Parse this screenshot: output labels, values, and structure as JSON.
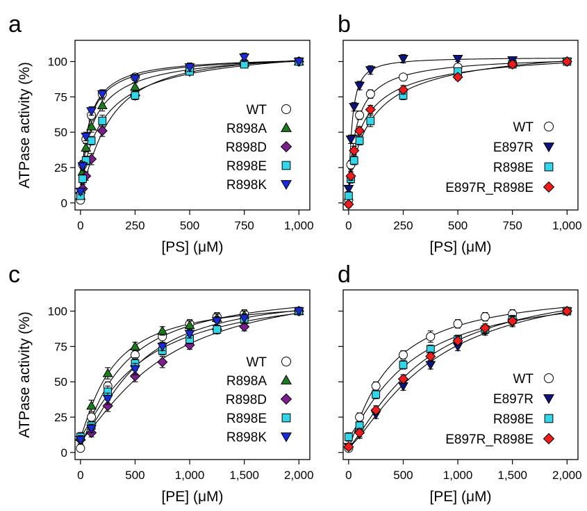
{
  "figure": {
    "colors": {
      "WT": "#ffffff",
      "R898A": "#1e7a1e",
      "R898D": "#7b1f8c",
      "R898E": "#33d6e8",
      "R898K": "#1a2bd6",
      "E897R": "#0d137a",
      "E897R_R898E": "#ee1c1c"
    },
    "markers": {
      "WT": "circle",
      "R898A": "triangle-up",
      "R898D": "diamond",
      "R898E": "square",
      "R898K": "triangle-down",
      "E897R": "triangle-down",
      "E897R_R898E": "diamond"
    }
  },
  "chart_data": [
    {
      "type": "scatter",
      "panel": "a",
      "xlabel": "[PS] (μM)",
      "ylabel": "ATPase activity (%)",
      "xlim": [
        -25,
        1050
      ],
      "ylim": [
        -5,
        115
      ],
      "xticks": [
        0,
        250,
        500,
        750,
        1000
      ],
      "xtick_labels": [
        "0",
        "250",
        "500",
        "750",
        "1,000"
      ],
      "yticks": [
        0,
        25,
        50,
        75,
        100
      ],
      "ytick_labels": [
        "0",
        "25",
        "50",
        "75",
        "100"
      ],
      "legend_position": "center-right",
      "fit_lines": true,
      "series": [
        {
          "name": "WT",
          "x": [
            0,
            10,
            25,
            50,
            100,
            250,
            500,
            750,
            1000
          ],
          "y": [
            2,
            27,
            45,
            62,
            77,
            89,
            96,
            99,
            100
          ],
          "err": [
            2,
            3,
            3,
            3,
            3,
            2,
            2,
            2,
            1
          ]
        },
        {
          "name": "R898A",
          "x": [
            0,
            10,
            25,
            50,
            100,
            250,
            500,
            750,
            1000
          ],
          "y": [
            5,
            22,
            39,
            54,
            69,
            82,
            95,
            99,
            100
          ],
          "err": [
            2,
            3,
            3,
            4,
            4,
            3,
            2,
            2,
            1
          ]
        },
        {
          "name": "R898D",
          "x": [
            0,
            10,
            25,
            50,
            100,
            250,
            500,
            750,
            1000
          ],
          "y": [
            7,
            10,
            19,
            31,
            51,
            76,
            93,
            99,
            100
          ],
          "err": [
            2,
            3,
            3,
            4,
            4,
            3,
            2,
            2,
            1
          ]
        },
        {
          "name": "R898E",
          "x": [
            0,
            10,
            25,
            50,
            100,
            250,
            500,
            750,
            1000
          ],
          "y": [
            5,
            17,
            30,
            44,
            58,
            76,
            93,
            98,
            100
          ],
          "err": [
            2,
            3,
            3,
            3,
            4,
            3,
            2,
            2,
            1
          ]
        },
        {
          "name": "R898K",
          "x": [
            0,
            10,
            25,
            50,
            100,
            250,
            500,
            750,
            1000
          ],
          "y": [
            8,
            26,
            47,
            65,
            77,
            88,
            96,
            103,
            100
          ],
          "err": [
            2,
            3,
            3,
            3,
            3,
            3,
            3,
            3,
            1
          ]
        }
      ]
    },
    {
      "type": "scatter",
      "panel": "b",
      "xlabel": "[PS] (μM)",
      "ylabel": "",
      "xlim": [
        -25,
        1050
      ],
      "ylim": [
        -5,
        115
      ],
      "xticks": [
        0,
        250,
        500,
        750,
        1000
      ],
      "xtick_labels": [
        "0",
        "250",
        "500",
        "750",
        "1,000"
      ],
      "yticks": [
        0,
        25,
        50,
        75,
        100
      ],
      "legend_position": "center-right",
      "fit_lines": true,
      "series": [
        {
          "name": "WT",
          "x": [
            0,
            10,
            25,
            50,
            100,
            250,
            500,
            750,
            1000
          ],
          "y": [
            2,
            27,
            45,
            62,
            77,
            89,
            96,
            99,
            100
          ],
          "err": [
            2,
            3,
            3,
            3,
            3,
            2,
            2,
            2,
            1
          ]
        },
        {
          "name": "E897R",
          "x": [
            0,
            10,
            25,
            50,
            100,
            250,
            500,
            750,
            1000
          ],
          "y": [
            10,
            45,
            68,
            83,
            94,
            102,
            102,
            101,
            100
          ],
          "err": [
            2,
            3,
            3,
            3,
            3,
            3,
            2,
            2,
            1
          ]
        },
        {
          "name": "R898E",
          "x": [
            0,
            10,
            25,
            50,
            100,
            250,
            500,
            750,
            1000
          ],
          "y": [
            5,
            17,
            30,
            44,
            58,
            76,
            93,
            98,
            100
          ],
          "err": [
            2,
            3,
            3,
            3,
            4,
            3,
            2,
            2,
            1
          ]
        },
        {
          "name": "E897R_R898E",
          "x": [
            0,
            10,
            25,
            50,
            100,
            250,
            500,
            750,
            1000
          ],
          "y": [
            -1,
            19,
            37,
            51,
            66,
            80,
            89,
            98,
            100
          ],
          "err": [
            2,
            3,
            3,
            3,
            3,
            3,
            2,
            2,
            1
          ]
        }
      ]
    },
    {
      "type": "scatter",
      "panel": "c",
      "xlabel": "[PE] (μM)",
      "ylabel": "ATPase activity (%)",
      "xlim": [
        -50,
        2100
      ],
      "ylim": [
        -5,
        115
      ],
      "xticks": [
        0,
        500,
        1000,
        1500,
        2000
      ],
      "xtick_labels": [
        "0",
        "500",
        "1,000",
        "1,500",
        "2,000"
      ],
      "yticks": [
        0,
        25,
        50,
        75,
        100
      ],
      "ytick_labels": [
        "0",
        "25",
        "50",
        "75",
        "100"
      ],
      "legend_position": "center-right",
      "fit_lines": true,
      "series": [
        {
          "name": "WT",
          "x": [
            0,
            100,
            250,
            500,
            750,
            1000,
            1250,
            1500,
            2000
          ],
          "y": [
            3,
            25,
            47,
            69,
            82,
            91,
            96,
            98,
            100
          ],
          "err": [
            2,
            3,
            3,
            3,
            4,
            3,
            3,
            3,
            2
          ]
        },
        {
          "name": "R898A",
          "x": [
            0,
            100,
            250,
            500,
            750,
            1000,
            1250,
            1500,
            2000
          ],
          "y": [
            11,
            33,
            56,
            75,
            86,
            90,
            95,
            97,
            100
          ],
          "err": [
            3,
            4,
            4,
            3,
            3,
            3,
            3,
            3,
            2
          ]
        },
        {
          "name": "R898D",
          "x": [
            0,
            100,
            250,
            500,
            750,
            1000,
            1250,
            1500,
            2000
          ],
          "y": [
            9,
            14,
            33,
            54,
            64,
            76,
            87,
            89,
            100
          ],
          "err": [
            3,
            3,
            4,
            4,
            4,
            3,
            3,
            3,
            2
          ]
        },
        {
          "name": "R898E",
          "x": [
            0,
            100,
            250,
            500,
            750,
            1000,
            1250,
            1500,
            2000
          ],
          "y": [
            11,
            19,
            43,
            63,
            72,
            80,
            87,
            94,
            100
          ],
          "err": [
            3,
            3,
            4,
            4,
            3,
            3,
            3,
            3,
            2
          ]
        },
        {
          "name": "R898K",
          "x": [
            0,
            100,
            250,
            500,
            750,
            1000,
            1250,
            1500,
            2000
          ],
          "y": [
            9,
            17,
            38,
            59,
            75,
            84,
            93,
            95,
            100
          ],
          "err": [
            3,
            3,
            4,
            4,
            3,
            3,
            3,
            3,
            2
          ]
        }
      ]
    },
    {
      "type": "scatter",
      "panel": "d",
      "xlabel": "[PE] (μM)",
      "ylabel": "",
      "xlim": [
        -50,
        2100
      ],
      "ylim": [
        -5,
        115
      ],
      "xticks": [
        0,
        500,
        1000,
        1500,
        2000
      ],
      "xtick_labels": [
        "0",
        "500",
        "1,000",
        "1,500",
        "2,000"
      ],
      "yticks": [
        0,
        25,
        50,
        75,
        100
      ],
      "legend_position": "center-right",
      "fit_lines": true,
      "series": [
        {
          "name": "WT",
          "x": [
            0,
            100,
            250,
            500,
            750,
            1000,
            1250,
            1500,
            2000
          ],
          "y": [
            3,
            25,
            47,
            69,
            82,
            91,
            96,
            98,
            100
          ],
          "err": [
            2,
            3,
            3,
            3,
            4,
            3,
            3,
            3,
            2
          ]
        },
        {
          "name": "E897R",
          "x": [
            0,
            100,
            250,
            500,
            750,
            1000,
            1250,
            1500,
            2000
          ],
          "y": [
            4,
            13,
            27,
            47,
            62,
            75,
            86,
            92,
            100
          ],
          "err": [
            2,
            3,
            3,
            3,
            3,
            3,
            3,
            3,
            2
          ]
        },
        {
          "name": "R898E",
          "x": [
            0,
            100,
            250,
            500,
            750,
            1000,
            1250,
            1500,
            2000
          ],
          "y": [
            11,
            19,
            41,
            62,
            73,
            80,
            87,
            94,
            100
          ],
          "err": [
            3,
            3,
            3,
            3,
            3,
            3,
            3,
            3,
            2
          ]
        },
        {
          "name": "E897R_R898E",
          "x": [
            0,
            100,
            250,
            500,
            750,
            1000,
            1250,
            1500,
            2000
          ],
          "y": [
            4,
            14,
            30,
            52,
            68,
            79,
            88,
            93,
            100
          ],
          "err": [
            2,
            3,
            3,
            3,
            3,
            3,
            3,
            3,
            2
          ]
        }
      ]
    }
  ]
}
